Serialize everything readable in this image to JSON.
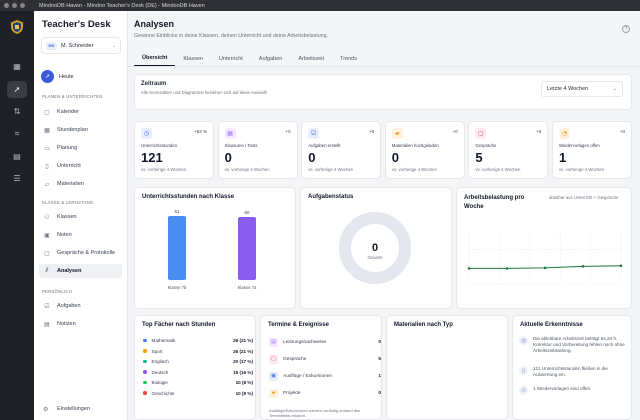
{
  "window": {
    "title": "MindooDB Haven - Mindoo Teacher's Desk (DE) - MindooDB Haven",
    "traffic_colors": [
      "#ff5f57",
      "#febc2e",
      "#28c840"
    ]
  },
  "rail": {
    "icons": [
      "grid-icon",
      "rocket-icon",
      "sort-icon",
      "scan-icon",
      "calendar-icon",
      "sliders-icon"
    ]
  },
  "sidebar": {
    "brand": "Teacher's Desk",
    "user": {
      "initials": "MS",
      "name": "M. Schneider"
    },
    "today_label": "Heute",
    "sections": [
      {
        "label": "PLANEN & UNTERRICHTEN",
        "items": [
          {
            "label": "Kalender",
            "icon": "calendar-icon"
          },
          {
            "label": "Stundenplan",
            "icon": "table-icon"
          },
          {
            "label": "Planung",
            "icon": "clipboard-icon"
          },
          {
            "label": "Unterricht",
            "icon": "book-icon"
          },
          {
            "label": "Materialien",
            "icon": "folder-icon"
          }
        ]
      },
      {
        "label": "KLASSE & LERNSTAND",
        "items": [
          {
            "label": "Klassen",
            "icon": "users-icon"
          },
          {
            "label": "Noten",
            "icon": "grade-icon"
          },
          {
            "label": "Gespräche & Protokolle",
            "icon": "chat-icon"
          },
          {
            "label": "Analysen",
            "icon": "chart-icon",
            "active": true
          }
        ]
      },
      {
        "label": "PERSÖNLICH",
        "items": [
          {
            "label": "Aufgaben",
            "icon": "task-icon"
          },
          {
            "label": "Notizen",
            "icon": "note-icon"
          }
        ]
      }
    ],
    "settings_label": "Einstellungen"
  },
  "header": {
    "title": "Analysen",
    "subtitle": "Gewinne Einblicke in deine Klassen, deinen Unterricht und deine Arbeitsbelastung.",
    "help": "?"
  },
  "tabs": [
    {
      "label": "Übersicht",
      "active": true
    },
    {
      "label": "Klassen"
    },
    {
      "label": "Unterricht"
    },
    {
      "label": "Aufgaben"
    },
    {
      "label": "Arbeitszeit"
    },
    {
      "label": "Trends"
    }
  ],
  "zeitraum": {
    "title": "Zeitraum",
    "subtitle": "Alle Kennzahlen und Diagramme beziehen sich auf diese Auswahl",
    "selected": "Letzte 4 Wochen"
  },
  "stats": [
    {
      "label": "Unterrichtsstunden",
      "value": "121",
      "delta": "+83 %",
      "vs": "vs. vorherige 4 Wochen",
      "icon": "clock-icon",
      "icon_bg": "#e7efff",
      "icon_fg": "#3b6fe0"
    },
    {
      "label": "Klausuren / Tests",
      "value": "0",
      "delta": "+0",
      "vs": "vs. vorherige 4 Wochen",
      "icon": "doc-icon",
      "icon_bg": "#f3e8ff",
      "icon_fg": "#8b5cf6"
    },
    {
      "label": "Aufgaben erstellt",
      "value": "0",
      "delta": "+0",
      "vs": "vs. vorherige 4 Wochen",
      "icon": "check-icon",
      "icon_bg": "#e7efff",
      "icon_fg": "#3b6fe0"
    },
    {
      "label": "Materialien hochgeladen",
      "value": "0",
      "delta": "+0",
      "vs": "vs. vorherige 4 Wochen",
      "icon": "folder-icon",
      "icon_bg": "#fff1dc",
      "icon_fg": "#e69a1e"
    },
    {
      "label": "Gespräche",
      "value": "5",
      "delta": "+5",
      "vs": "vs. vorherige 4 Wochen",
      "icon": "chat-icon",
      "icon_bg": "#fde8ef",
      "icon_fg": "#e0457b"
    },
    {
      "label": "Wiedervorlagen offen",
      "value": "1",
      "delta": "+0",
      "vs": "vs. vorherige 4 Wochen",
      "icon": "alarm-icon",
      "icon_bg": "#fff1dc",
      "icon_fg": "#e69a1e"
    }
  ],
  "chart_data": [
    {
      "type": "bar",
      "title": "Unterrichtsstunden nach Klasse",
      "categories": [
        "Klasse 7b",
        "Klasse 7a"
      ],
      "values": [
        61,
        60
      ],
      "colors": [
        "#4a8df0",
        "#8b5cf0"
      ],
      "ylim": [
        0,
        61
      ]
    },
    {
      "type": "pie",
      "title": "Aufgabenstatus",
      "center_value": "0",
      "center_label": "Gesamt",
      "values": [],
      "ring_color": "#e5e7ef"
    },
    {
      "type": "line",
      "title": "Arbeitsbelastung pro Woche",
      "legend": "abeitbar aus Unterricht + Gespräche",
      "values": [
        0.3,
        0.3,
        0.31,
        0.34,
        0.35
      ],
      "ylim": [
        0,
        1
      ],
      "line_color": "#1f7a43"
    }
  ],
  "top_subjects": {
    "title": "Top Fächer nach Stunden",
    "rows": [
      {
        "label": "Mathematik",
        "value": "26 (21 %)",
        "color": "#3b82f6"
      },
      {
        "label": "Sport",
        "value": "26 (21 %)",
        "color": "#f59e0b"
      },
      {
        "label": "Englisch",
        "value": "20 (17 %)",
        "color": "#10b981"
      },
      {
        "label": "Deutsch",
        "value": "19 (16 %)",
        "color": "#8b5cf6"
      },
      {
        "label": "Biologie",
        "value": "10 (8 %)",
        "color": "#22c55e"
      },
      {
        "label": "Geschichte",
        "value": "10 (8 %)",
        "color": "#ef4444"
      }
    ]
  },
  "events": {
    "title": "Termine & Ereignisse",
    "rows": [
      {
        "label": "Leistungsnachweise",
        "value": "0",
        "icon": "doc-icon",
        "icon_bg": "#f3e8ff",
        "icon_fg": "#8b5cf6"
      },
      {
        "label": "Gespräche",
        "value": "5",
        "icon": "chat-icon",
        "icon_bg": "#fde8ef",
        "icon_fg": "#e0457b"
      },
      {
        "label": "Ausflüge / Exkursionen",
        "value": "1",
        "icon": "bus-icon",
        "icon_bg": "#e7efff",
        "icon_fg": "#3b6fe0"
      },
      {
        "label": "Projekte",
        "value": "0",
        "icon": "folder-icon",
        "icon_bg": "#fff1dc",
        "icon_fg": "#e69a1e"
      }
    ],
    "note": "Ausflüge/Exkursionen werden vorläufig anhand des Terminttitels erkannt."
  },
  "materials": {
    "title": "Materialien nach Typ"
  },
  "insights": {
    "title": "Aktuelle Erkenntnisse",
    "rows": [
      {
        "text": "Die ableitbare Arbeitszeit beträgt 84.20 h. Korrektur und Vorbereitung fehlen noch ohne Arbeitszeittracking.",
        "icon": "clock-icon"
      },
      {
        "text": "121 Unterrichtsstunden fließen in die Auswertung ein.",
        "icon": "book-icon"
      },
      {
        "text": "1 Wiedervorlagen sind offen.",
        "icon": "users-icon"
      }
    ]
  }
}
